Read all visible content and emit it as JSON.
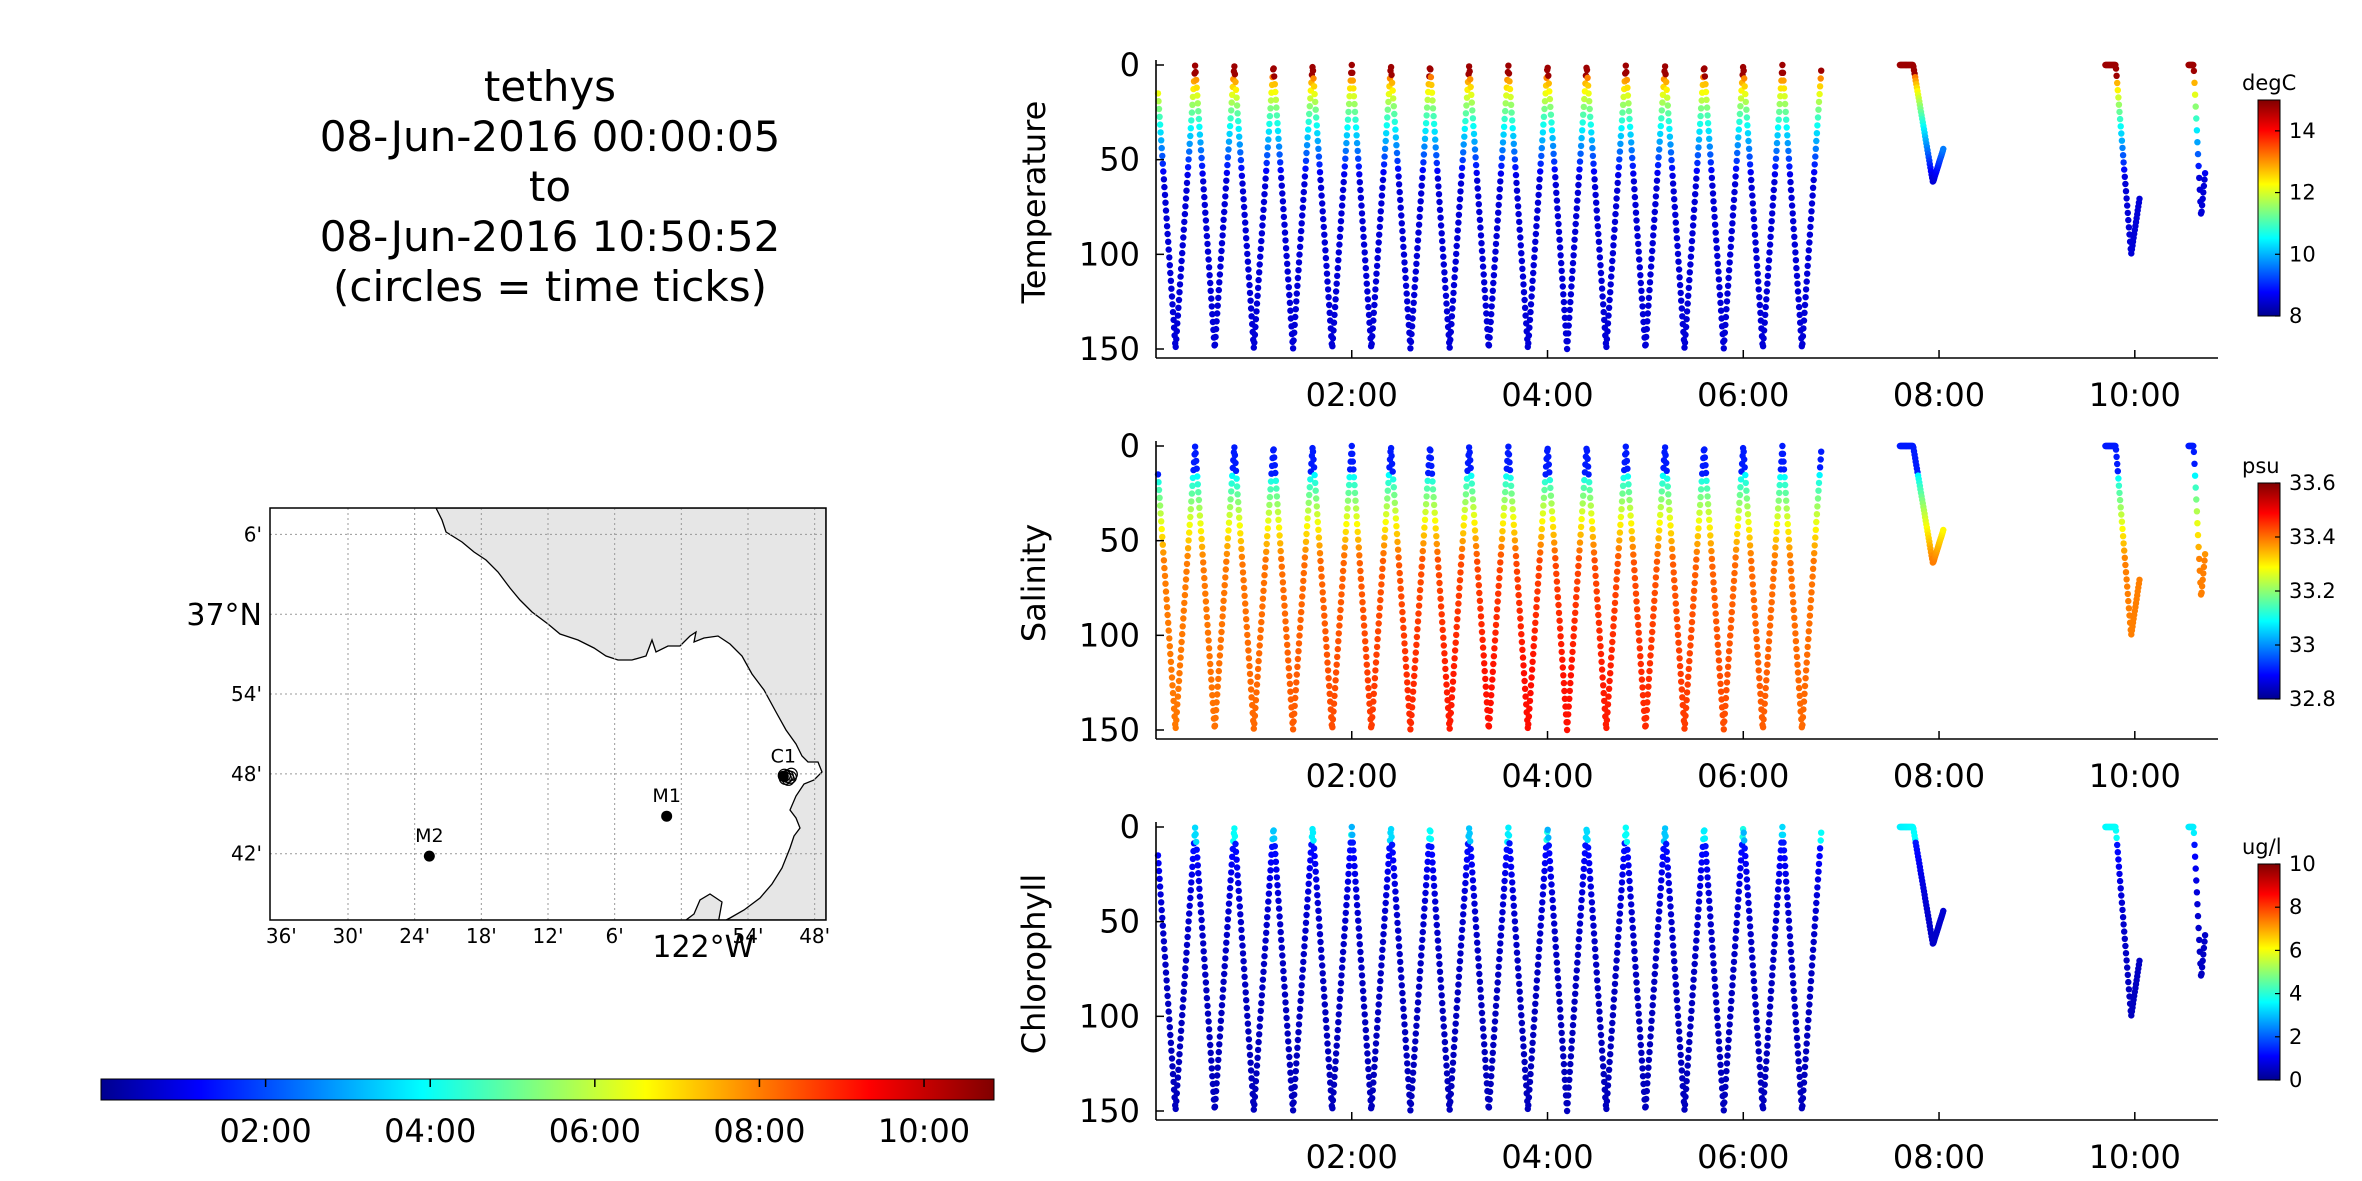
{
  "title": {
    "vehicle": "tethys",
    "start": "08-Jun-2016 00:00:05",
    "to": "to",
    "end": "08-Jun-2016 10:50:52",
    "note": "(circles = time ticks)"
  },
  "map": {
    "lat_ticks": [
      "6'",
      "37°N",
      "54'",
      "48'",
      "42'"
    ],
    "lon_ticks": [
      "36'",
      "30'",
      "24'",
      "18'",
      "12'",
      "6'",
      "122°W",
      "54'",
      "48'"
    ],
    "stations": [
      {
        "name": "C1",
        "lon": -121.847,
        "lat": 36.797
      },
      {
        "name": "M1",
        "lon": -122.022,
        "lat": 36.747
      },
      {
        "name": "M2",
        "lon": -122.378,
        "lat": 36.697
      }
    ],
    "lon_range": [
      -122.617,
      -121.783
    ],
    "lat_range": [
      36.617,
      37.133
    ],
    "land_color": "#e6e6e6"
  },
  "time_colorbar": {
    "ticks": [
      "02:00",
      "04:00",
      "06:00",
      "08:00",
      "10:00"
    ],
    "range_hours": [
      0.0,
      10.85
    ],
    "colormap": "jet"
  },
  "chart_data": [
    {
      "type": "scatter",
      "ylabel": "Temperature",
      "unit": "degC",
      "x_ticks": [
        "02:00",
        "04:00",
        "06:00",
        "08:00",
        "10:00"
      ],
      "y_ticks": [
        "0",
        "50",
        "100",
        "150"
      ],
      "x_range_hours": [
        0.0,
        10.85
      ],
      "y_range_m": [
        0,
        150
      ],
      "y_reversed": true,
      "colorbar_ticks": [
        "14",
        "12",
        "10",
        "8"
      ],
      "color_range": [
        8,
        15
      ],
      "surface_value": 14.5,
      "bottom_value": 8.6,
      "profile": {
        "yo_period_hours": 0.4,
        "max_depth_m": 150,
        "yo_end_hours": 6.8
      }
    },
    {
      "type": "scatter",
      "ylabel": "Salinity",
      "unit": "psu",
      "x_ticks": [
        "02:00",
        "04:00",
        "06:00",
        "08:00",
        "10:00"
      ],
      "y_ticks": [
        "0",
        "50",
        "100",
        "150"
      ],
      "x_range_hours": [
        0.0,
        10.85
      ],
      "y_range_m": [
        0,
        150
      ],
      "y_reversed": true,
      "colorbar_ticks": [
        "33.6",
        "33.4",
        "33.2",
        "33",
        "32.8"
      ],
      "color_range": [
        32.8,
        33.6
      ],
      "surface_value": 32.9,
      "bottom_value": 33.4,
      "profile": {
        "yo_period_hours": 0.4,
        "max_depth_m": 150,
        "yo_end_hours": 6.8
      }
    },
    {
      "type": "scatter",
      "ylabel": "Chlorophyll",
      "unit": "ug/l",
      "x_ticks": [
        "02:00",
        "04:00",
        "06:00",
        "08:00",
        "10:00"
      ],
      "y_ticks": [
        "0",
        "50",
        "100",
        "150"
      ],
      "x_range_hours": [
        0.0,
        10.85
      ],
      "y_range_m": [
        0,
        150
      ],
      "y_reversed": true,
      "colorbar_ticks": [
        "10",
        "8",
        "6",
        "4",
        "2",
        "0"
      ],
      "color_range": [
        0,
        10
      ],
      "surface_value": 3.5,
      "bottom_value": 0.6,
      "profile": {
        "yo_period_hours": 0.4,
        "max_depth_m": 150,
        "yo_end_hours": 6.8
      }
    }
  ]
}
